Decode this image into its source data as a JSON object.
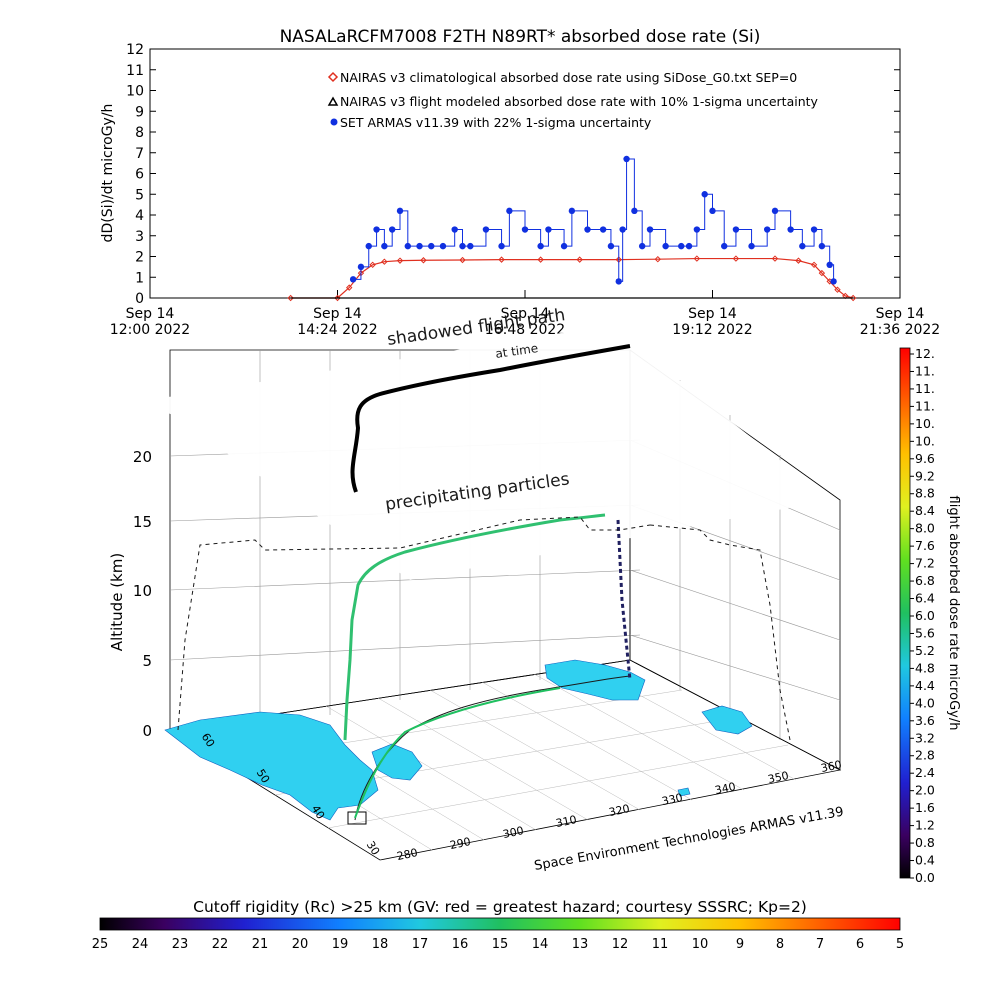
{
  "title": "NASALaRCFM7008  F2TH N89RT* absorbed dose rate (Si)",
  "chart_data": [
    {
      "type": "line",
      "ylabel": "dD(Si)/dt microGy/h",
      "ylim": [
        0,
        12
      ],
      "y_ticks": [
        "0",
        "1",
        "2",
        "3",
        "4",
        "5",
        "6",
        "7",
        "8",
        "9",
        "10",
        "11",
        "12"
      ],
      "x_ticks": [
        {
          "line1": "Sep 14",
          "line2": "12:00 2022",
          "hour": 12.0
        },
        {
          "line1": "Sep 14",
          "line2": "14:24 2022",
          "hour": 14.4
        },
        {
          "line1": "Sep 14",
          "line2": "16:48 2022",
          "hour": 16.8
        },
        {
          "line1": "Sep 14",
          "line2": "19:12 2022",
          "hour": 19.2
        },
        {
          "line1": "Sep 14",
          "line2": "21:36 2022",
          "hour": 21.6
        }
      ],
      "xlim_hours": [
        12.0,
        21.6
      ],
      "legend": [
        {
          "label": "NAIRAS v3 climatological absorbed dose rate using SiDose_G0.txt SEP=0",
          "color": "#e03020",
          "marker": "diamond"
        },
        {
          "label": "NAIRAS v3 flight modeled absorbed dose rate with 10% 1-sigma uncertainty",
          "color": "#000000",
          "marker": "triangle"
        },
        {
          "label": "SET ARMAS v11.39 with 22% 1-sigma uncertainty",
          "color": "#1030e0",
          "marker": "circle"
        }
      ],
      "series": [
        {
          "name": "NAIRAS v3 climatological absorbed dose rate using SiDose_G0.txt SEP=0",
          "x": [
            13.8,
            14.4,
            14.55,
            14.7,
            14.85,
            15.0,
            15.2,
            15.5,
            16.0,
            16.5,
            17.0,
            17.5,
            18.0,
            18.5,
            19.0,
            19.5,
            20.0,
            20.3,
            20.5,
            20.6,
            20.7,
            20.8,
            20.9,
            21.0
          ],
          "y": [
            0,
            0,
            0.5,
            1.2,
            1.6,
            1.75,
            1.8,
            1.82,
            1.83,
            1.85,
            1.85,
            1.85,
            1.85,
            1.87,
            1.9,
            1.9,
            1.9,
            1.8,
            1.6,
            1.2,
            0.8,
            0.4,
            0.1,
            0
          ]
        },
        {
          "name": "NAIRAS v3 flight modeled absorbed dose rate with 10% 1-sigma uncertainty",
          "x": [
            13.8,
            21.0
          ],
          "y": [
            0,
            0
          ]
        },
        {
          "name": "SET ARMAS v11.39 with 22% 1-sigma uncertainty",
          "x": [
            14.6,
            14.7,
            14.8,
            14.9,
            15.0,
            15.1,
            15.2,
            15.3,
            15.45,
            15.6,
            15.75,
            15.9,
            16.0,
            16.1,
            16.3,
            16.5,
            16.6,
            16.8,
            17.0,
            17.1,
            17.3,
            17.4,
            17.6,
            17.8,
            17.9,
            18.0,
            18.05,
            18.1,
            18.2,
            18.3,
            18.4,
            18.6,
            18.8,
            18.9,
            19.0,
            19.1,
            19.2,
            19.35,
            19.5,
            19.7,
            19.9,
            20.0,
            20.2,
            20.35,
            20.5,
            20.6,
            20.7,
            20.75
          ],
          "y": [
            0.9,
            1.5,
            2.5,
            3.3,
            2.5,
            3.3,
            4.2,
            2.5,
            2.5,
            2.5,
            2.5,
            3.3,
            2.5,
            2.5,
            3.3,
            2.5,
            4.2,
            3.3,
            2.5,
            3.3,
            2.5,
            4.2,
            3.3,
            3.3,
            2.5,
            0.8,
            3.3,
            6.7,
            4.2,
            2.5,
            3.3,
            2.5,
            2.5,
            2.5,
            3.3,
            5.0,
            4.2,
            2.5,
            3.3,
            2.5,
            3.3,
            4.2,
            3.3,
            2.5,
            3.3,
            2.5,
            1.6,
            0.8
          ]
        }
      ]
    },
    {
      "type": "scatter",
      "zlabel": "Altitude (km)",
      "z_ticks": [
        "0",
        "5",
        "10",
        "15",
        "20"
      ],
      "lon_ticks": [
        "280",
        "290",
        "300",
        "310",
        "320",
        "330",
        "340",
        "350",
        "360"
      ],
      "lat_ticks": [
        "30",
        "40",
        "50",
        "60"
      ],
      "annotations": [
        "shadowed flight path",
        "precipitating particles",
        "at time"
      ],
      "credit": "Space Environment Technologies ARMAS v11.39"
    }
  ],
  "colorbar_right": {
    "label": "flight absorbed dose rate microGy/h",
    "ticks": [
      "12.",
      "11.",
      "11.",
      "11.",
      "10.",
      "10.",
      "9.6",
      "9.2",
      "8.8",
      "8.4",
      "8.0",
      "7.6",
      "7.2",
      "6.8",
      "6.4",
      "6.0",
      "5.6",
      "5.2",
      "4.8",
      "4.4",
      "4.0",
      "3.6",
      "3.2",
      "2.8",
      "2.4",
      "2.0",
      "1.6",
      "1.2",
      "0.8",
      "0.4",
      "0.0"
    ]
  },
  "colorbar_bottom": {
    "label": "Cutoff rigidity (Rc) >25 km (GV: red = greatest hazard; courtesy SSSRC; Kp=2)",
    "ticks": [
      "25",
      "24",
      "23",
      "22",
      "21",
      "20",
      "19",
      "18",
      "17",
      "16",
      "15",
      "14",
      "13",
      "12",
      "11",
      "10",
      "9",
      "8",
      "7",
      "6",
      "5"
    ]
  },
  "colors": {
    "climatology": "#e03020",
    "modeled": "#000000",
    "armas": "#1030e0",
    "land": "#30d0f0"
  }
}
